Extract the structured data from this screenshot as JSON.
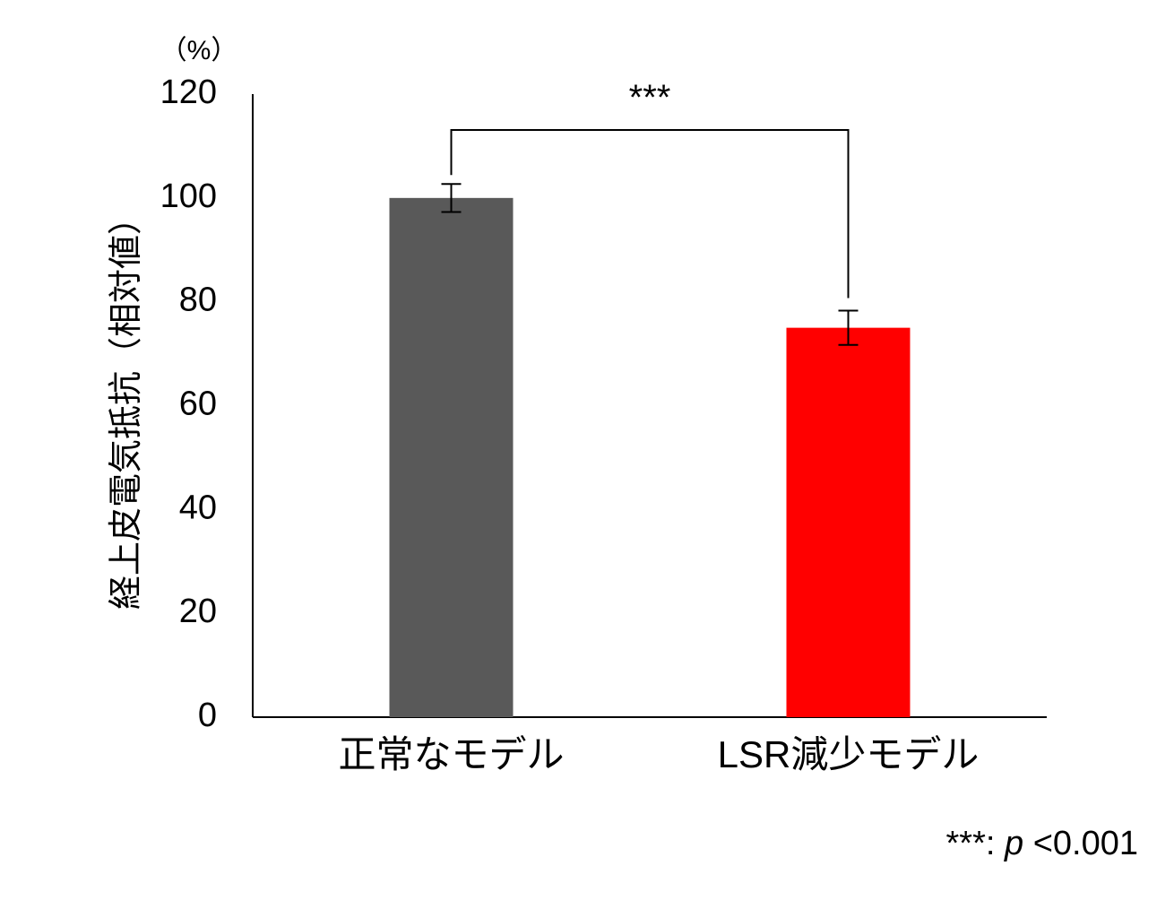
{
  "chart_data": {
    "type": "bar",
    "categories": [
      "正常なモデル",
      "LSR減少モデル"
    ],
    "values": [
      100,
      75
    ],
    "errors": [
      2.7,
      3.3
    ],
    "colors": [
      "#595959",
      "#ff0000"
    ],
    "ylabel": "経上皮電気抵抗（相対値）",
    "yunit": "（%）",
    "ylim": [
      0,
      120
    ],
    "yticks": [
      0,
      20,
      40,
      60,
      80,
      100,
      120
    ],
    "grid": false,
    "significance": {
      "between": [
        0,
        1
      ],
      "label": "***"
    },
    "footnote": {
      "stars": "***:",
      "p": "p",
      "rest": "<0.001"
    }
  }
}
